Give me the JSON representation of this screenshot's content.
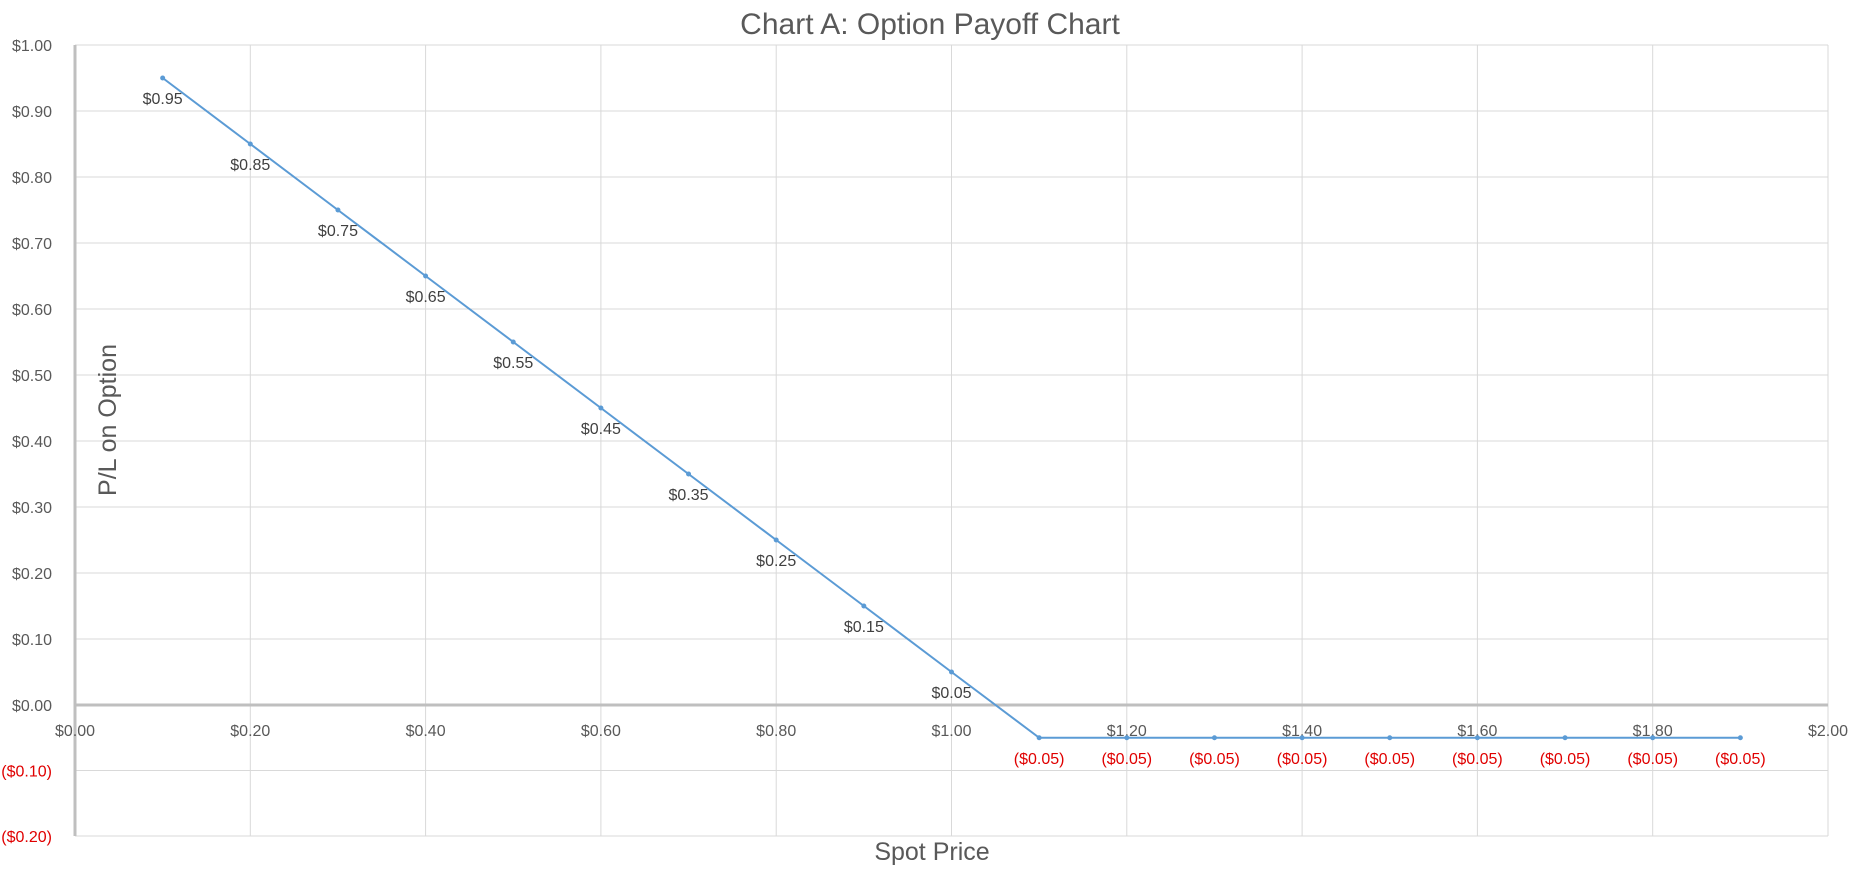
{
  "chart_data": {
    "type": "line",
    "title": "Chart A: Option Payoff Chart",
    "xlabel": "Spot Price",
    "ylabel": "P/L on Option",
    "xlim": [
      0,
      2
    ],
    "ylim": [
      -0.2,
      1.0
    ],
    "grid": true,
    "x_ticks": [
      {
        "value": 0.0,
        "label": "$0.00"
      },
      {
        "value": 0.2,
        "label": "$0.20"
      },
      {
        "value": 0.4,
        "label": "$0.40"
      },
      {
        "value": 0.6,
        "label": "$0.60"
      },
      {
        "value": 0.8,
        "label": "$0.80"
      },
      {
        "value": 1.0,
        "label": "$1.00"
      },
      {
        "value": 1.2,
        "label": "$1.20"
      },
      {
        "value": 1.4,
        "label": "$1.40"
      },
      {
        "value": 1.6,
        "label": "$1.60"
      },
      {
        "value": 1.8,
        "label": "$1.80"
      },
      {
        "value": 2.0,
        "label": "$2.00"
      }
    ],
    "y_ticks": [
      {
        "value": 1.0,
        "label": "$1.00"
      },
      {
        "value": 0.9,
        "label": "$0.90"
      },
      {
        "value": 0.8,
        "label": "$0.80"
      },
      {
        "value": 0.7,
        "label": "$0.70"
      },
      {
        "value": 0.6,
        "label": "$0.60"
      },
      {
        "value": 0.5,
        "label": "$0.50"
      },
      {
        "value": 0.4,
        "label": "$0.40"
      },
      {
        "value": 0.3,
        "label": "$0.30"
      },
      {
        "value": 0.2,
        "label": "$0.20"
      },
      {
        "value": 0.1,
        "label": "$0.10"
      },
      {
        "value": 0.0,
        "label": "$0.00"
      },
      {
        "value": -0.1,
        "label": "($0.10)"
      },
      {
        "value": -0.2,
        "label": "($0.20)"
      }
    ],
    "series": [
      {
        "color": "#5b9bd5",
        "negative_label_color": "#e00000",
        "x": [
          0.1,
          0.2,
          0.3,
          0.4,
          0.5,
          0.6,
          0.7,
          0.8,
          0.9,
          1.0,
          1.1,
          1.2,
          1.3,
          1.4,
          1.5,
          1.6,
          1.7,
          1.8,
          1.9
        ],
        "values": [
          0.95,
          0.85,
          0.75,
          0.65,
          0.55,
          0.45,
          0.35,
          0.25,
          0.15,
          0.05,
          -0.05,
          -0.05,
          -0.05,
          -0.05,
          -0.05,
          -0.05,
          -0.05,
          -0.05,
          -0.05
        ],
        "labels": [
          "$0.95",
          "$0.85",
          "$0.75",
          "$0.65",
          "$0.55",
          "$0.45",
          "$0.35",
          "$0.25",
          "$0.15",
          "$0.05",
          "($0.05)",
          "($0.05)",
          "($0.05)",
          "($0.05)",
          "($0.05)",
          "($0.05)",
          "($0.05)",
          "($0.05)",
          "($0.05)"
        ]
      }
    ]
  }
}
